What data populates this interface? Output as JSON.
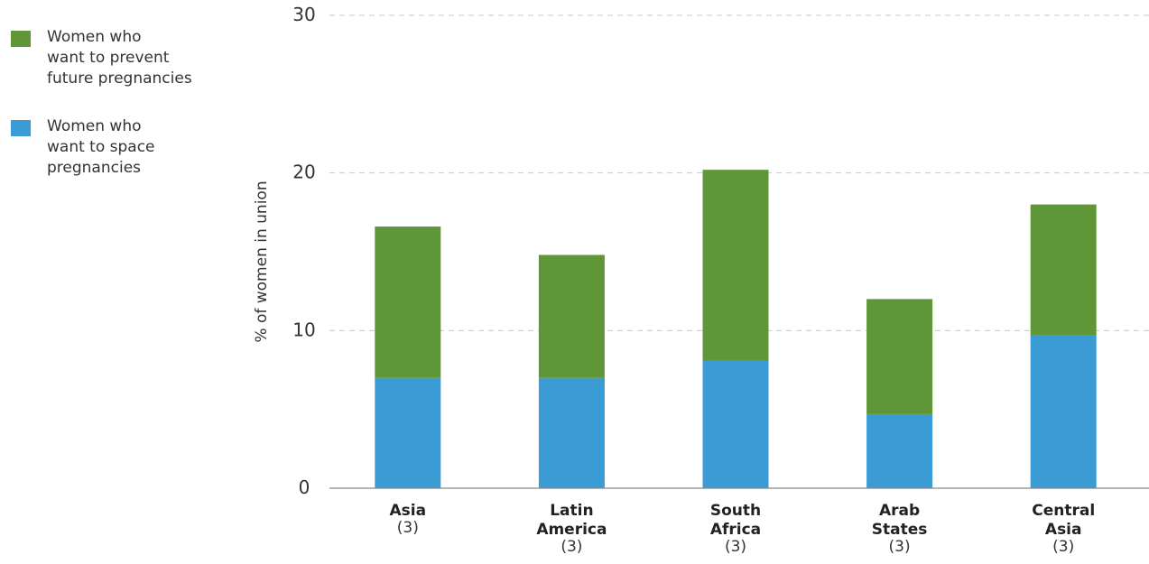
{
  "colors": {
    "prevent": "#5f9637",
    "space": "#3a9bd5",
    "grid": "#c8c8c8",
    "axis": "#888888"
  },
  "chart_data": {
    "type": "bar",
    "stacked": true,
    "ylabel": "% of women in union",
    "ylim": [
      0,
      30
    ],
    "yticks": [
      0,
      10,
      20,
      30
    ],
    "grid": true,
    "legend_position": "top-left",
    "categories": [
      {
        "name": [
          "Asia"
        ],
        "count": "(3)"
      },
      {
        "name": [
          "Latin",
          "America"
        ],
        "count": "(3)"
      },
      {
        "name": [
          "South",
          "Africa"
        ],
        "count": "(3)"
      },
      {
        "name": [
          "Arab",
          "States"
        ],
        "count": "(3)"
      },
      {
        "name": [
          "Central",
          "Asia"
        ],
        "count": "(3)"
      }
    ],
    "series": [
      {
        "name": "Women who want to space pregnancies",
        "legend_lines": [
          "Women who",
          "want to space",
          "pregnancies"
        ],
        "color": "#3a9bd5",
        "values": [
          7.0,
          7.0,
          8.1,
          4.7,
          9.7
        ]
      },
      {
        "name": "Women who want to prevent future pregnancies",
        "legend_lines": [
          "Women who",
          "want to prevent",
          "future pregnancies"
        ],
        "color": "#5f9637",
        "values": [
          9.6,
          7.8,
          12.1,
          7.3,
          8.3
        ]
      }
    ]
  }
}
